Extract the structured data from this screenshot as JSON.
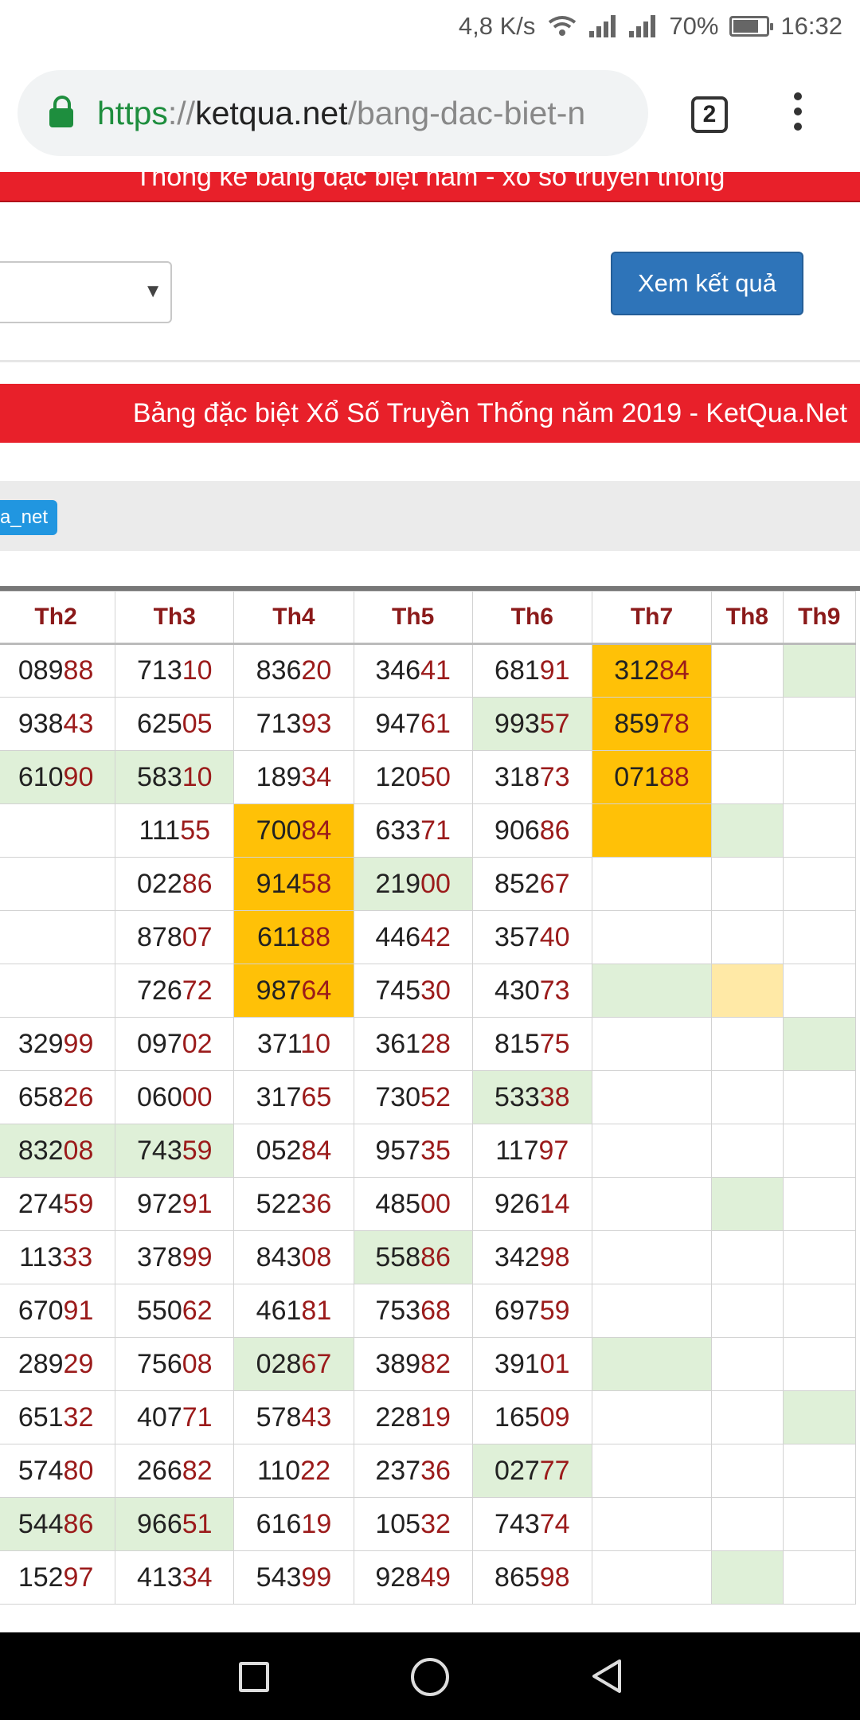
{
  "status_bar": {
    "speed": "4,8 K/s",
    "battery": "70%",
    "time": "16:32",
    "icons": [
      "wifi-icon",
      "signal-icon",
      "signal-icon",
      "battery-icon"
    ]
  },
  "browser": {
    "url_scheme": "https",
    "url_sep": "://",
    "url_host": "ketqua.net",
    "url_path": "/bang-dac-biet-n",
    "tab_count": "2",
    "lock_icon": "lock-icon",
    "menu_icon": "more-vert-icon"
  },
  "page": {
    "top_banner": "Thống kê bảng đặc biệt năm - xổ số truyền thống",
    "select_value": "",
    "view_button": "Xem kết quả",
    "main_banner": "Bảng đặc biệt Xổ Số Truyền Thống năm 2019 - KetQua.Net",
    "tag": "a_net"
  },
  "table": {
    "headers": [
      "Th2",
      "Th3",
      "Th4",
      "Th5",
      "Th6",
      "Th7",
      "Th8",
      "Th9"
    ],
    "rows": [
      [
        [
          "089",
          "88",
          ""
        ],
        [
          "713",
          "10",
          ""
        ],
        [
          "836",
          "20",
          ""
        ],
        [
          "346",
          "41",
          ""
        ],
        [
          "681",
          "91",
          ""
        ],
        [
          "312",
          "84",
          "o"
        ],
        [
          "",
          "",
          ""
        ],
        [
          "",
          "",
          "g"
        ]
      ],
      [
        [
          "938",
          "43",
          ""
        ],
        [
          "625",
          "05",
          ""
        ],
        [
          "713",
          "93",
          ""
        ],
        [
          "947",
          "61",
          ""
        ],
        [
          "993",
          "57",
          "g"
        ],
        [
          "859",
          "78",
          "o"
        ],
        [
          "",
          "",
          ""
        ],
        [
          "",
          "",
          ""
        ]
      ],
      [
        [
          "610",
          "90",
          "g"
        ],
        [
          "583",
          "10",
          "g"
        ],
        [
          "189",
          "34",
          ""
        ],
        [
          "120",
          "50",
          ""
        ],
        [
          "318",
          "73",
          ""
        ],
        [
          "071",
          "88",
          "o"
        ],
        [
          "",
          "",
          ""
        ],
        [
          "",
          "",
          ""
        ]
      ],
      [
        [
          "",
          "",
          ""
        ],
        [
          "111",
          "55",
          ""
        ],
        [
          "700",
          "84",
          "o"
        ],
        [
          "633",
          "71",
          ""
        ],
        [
          "906",
          "86",
          ""
        ],
        [
          "",
          "",
          "o"
        ],
        [
          "",
          "",
          "g"
        ],
        [
          "",
          "",
          ""
        ]
      ],
      [
        [
          "",
          "",
          ""
        ],
        [
          "022",
          "86",
          ""
        ],
        [
          "914",
          "58",
          "o"
        ],
        [
          "219",
          "00",
          "g"
        ],
        [
          "852",
          "67",
          ""
        ],
        [
          "",
          "",
          ""
        ],
        [
          "",
          "",
          ""
        ],
        [
          "",
          "",
          ""
        ]
      ],
      [
        [
          "",
          "",
          ""
        ],
        [
          "878",
          "07",
          ""
        ],
        [
          "611",
          "88",
          "o"
        ],
        [
          "446",
          "42",
          ""
        ],
        [
          "357",
          "40",
          ""
        ],
        [
          "",
          "",
          ""
        ],
        [
          "",
          "",
          ""
        ],
        [
          "",
          "",
          ""
        ]
      ],
      [
        [
          "",
          "",
          ""
        ],
        [
          "726",
          "72",
          ""
        ],
        [
          "987",
          "64",
          "o"
        ],
        [
          "745",
          "30",
          ""
        ],
        [
          "430",
          "73",
          ""
        ],
        [
          "",
          "",
          "g"
        ],
        [
          "",
          "",
          "y"
        ],
        [
          "",
          "",
          ""
        ]
      ],
      [
        [
          "329",
          "99",
          ""
        ],
        [
          "097",
          "02",
          ""
        ],
        [
          "371",
          "10",
          ""
        ],
        [
          "361",
          "28",
          ""
        ],
        [
          "815",
          "75",
          ""
        ],
        [
          "",
          "",
          ""
        ],
        [
          "",
          "",
          ""
        ],
        [
          "",
          "",
          "g"
        ]
      ],
      [
        [
          "658",
          "26",
          ""
        ],
        [
          "060",
          "00",
          ""
        ],
        [
          "317",
          "65",
          ""
        ],
        [
          "730",
          "52",
          ""
        ],
        [
          "533",
          "38",
          "g"
        ],
        [
          "",
          "",
          ""
        ],
        [
          "",
          "",
          ""
        ],
        [
          "",
          "",
          ""
        ]
      ],
      [
        [
          "832",
          "08",
          "g"
        ],
        [
          "743",
          "59",
          "g"
        ],
        [
          "052",
          "84",
          ""
        ],
        [
          "957",
          "35",
          ""
        ],
        [
          "117",
          "97",
          ""
        ],
        [
          "",
          "",
          ""
        ],
        [
          "",
          "",
          ""
        ],
        [
          "",
          "",
          ""
        ]
      ],
      [
        [
          "274",
          "59",
          ""
        ],
        [
          "972",
          "91",
          ""
        ],
        [
          "522",
          "36",
          ""
        ],
        [
          "485",
          "00",
          ""
        ],
        [
          "926",
          "14",
          ""
        ],
        [
          "",
          "",
          ""
        ],
        [
          "",
          "",
          "g"
        ],
        [
          "",
          "",
          ""
        ]
      ],
      [
        [
          "113",
          "33",
          ""
        ],
        [
          "378",
          "99",
          ""
        ],
        [
          "843",
          "08",
          ""
        ],
        [
          "558",
          "86",
          "g"
        ],
        [
          "342",
          "98",
          ""
        ],
        [
          "",
          "",
          ""
        ],
        [
          "",
          "",
          ""
        ],
        [
          "",
          "",
          ""
        ]
      ],
      [
        [
          "670",
          "91",
          ""
        ],
        [
          "550",
          "62",
          ""
        ],
        [
          "461",
          "81",
          ""
        ],
        [
          "753",
          "68",
          ""
        ],
        [
          "697",
          "59",
          ""
        ],
        [
          "",
          "",
          ""
        ],
        [
          "",
          "",
          ""
        ],
        [
          "",
          "",
          ""
        ]
      ],
      [
        [
          "289",
          "29",
          ""
        ],
        [
          "756",
          "08",
          ""
        ],
        [
          "028",
          "67",
          "g"
        ],
        [
          "389",
          "82",
          ""
        ],
        [
          "391",
          "01",
          ""
        ],
        [
          "",
          "",
          "g"
        ],
        [
          "",
          "",
          ""
        ],
        [
          "",
          "",
          ""
        ]
      ],
      [
        [
          "651",
          "32",
          ""
        ],
        [
          "407",
          "71",
          ""
        ],
        [
          "578",
          "43",
          ""
        ],
        [
          "228",
          "19",
          ""
        ],
        [
          "165",
          "09",
          ""
        ],
        [
          "",
          "",
          ""
        ],
        [
          "",
          "",
          ""
        ],
        [
          "",
          "",
          "g"
        ]
      ],
      [
        [
          "574",
          "80",
          ""
        ],
        [
          "266",
          "82",
          ""
        ],
        [
          "110",
          "22",
          ""
        ],
        [
          "237",
          "36",
          ""
        ],
        [
          "027",
          "77",
          "g"
        ],
        [
          "",
          "",
          ""
        ],
        [
          "",
          "",
          ""
        ],
        [
          "",
          "",
          ""
        ]
      ],
      [
        [
          "544",
          "86",
          "g"
        ],
        [
          "966",
          "51",
          "g"
        ],
        [
          "616",
          "19",
          ""
        ],
        [
          "105",
          "32",
          ""
        ],
        [
          "743",
          "74",
          ""
        ],
        [
          "",
          "",
          ""
        ],
        [
          "",
          "",
          ""
        ],
        [
          "",
          "",
          ""
        ]
      ],
      [
        [
          "152",
          "97",
          ""
        ],
        [
          "413",
          "34",
          ""
        ],
        [
          "543",
          "99",
          ""
        ],
        [
          "928",
          "49",
          ""
        ],
        [
          "865",
          "98",
          ""
        ],
        [
          "",
          "",
          ""
        ],
        [
          "",
          "",
          "g"
        ],
        [
          "",
          "",
          ""
        ]
      ]
    ]
  },
  "nav": {
    "icons": [
      "recents-square-icon",
      "home-circle-icon",
      "back-triangle-icon"
    ]
  }
}
